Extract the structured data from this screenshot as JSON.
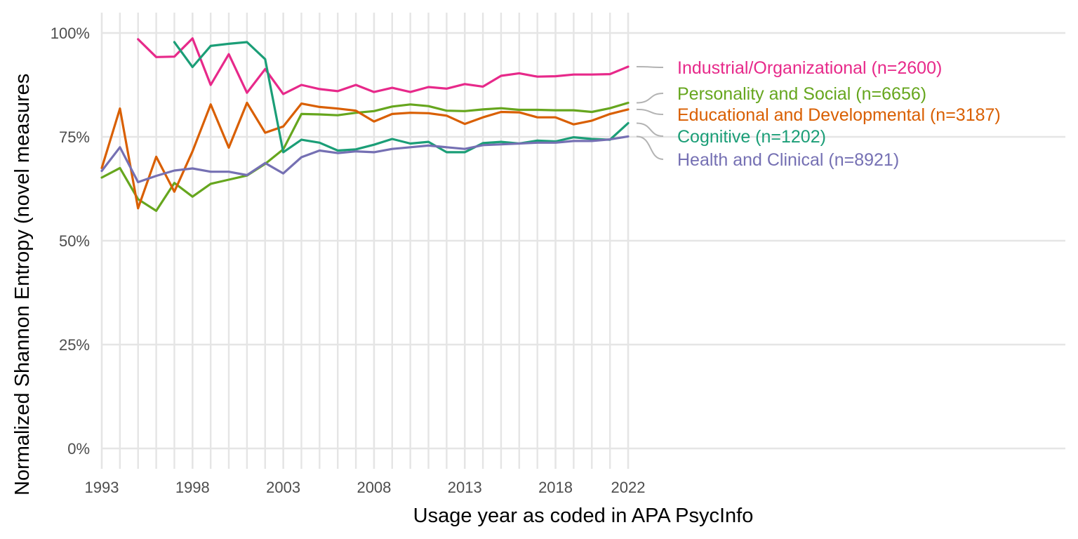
{
  "chart_data": {
    "type": "line",
    "xlabel": "Usage year as coded in APA PsycInfo",
    "ylabel": "Normalized Shannon Entropy (novel measures",
    "xlim": [
      1993,
      2022
    ],
    "ylim": [
      0,
      100
    ],
    "x_ticks": [
      1993,
      1998,
      2003,
      2008,
      2013,
      2018,
      2022
    ],
    "y_ticks": [
      0,
      25,
      50,
      75,
      100
    ],
    "y_tick_labels": [
      "0%",
      "25%",
      "50%",
      "75%",
      "100%"
    ],
    "grid": true,
    "legend_position": "right, direct labels",
    "series": [
      {
        "name": "Industrial/Organizational (n=2600)",
        "color": "#e7298a",
        "x": [
          1995,
          1996,
          1997,
          1998,
          1999,
          2000,
          2001,
          2002,
          2003,
          2004,
          2005,
          2006,
          2007,
          2008,
          2009,
          2010,
          2011,
          2012,
          2013,
          2014,
          2015,
          2016,
          2017,
          2018,
          2019,
          2020,
          2021,
          2022
        ],
        "values": [
          98.5,
          94.2,
          94.3,
          98.7,
          87.5,
          94.9,
          85.6,
          91.3,
          85.3,
          87.5,
          86.5,
          86.0,
          87.5,
          85.8,
          86.8,
          85.8,
          87.0,
          86.6,
          87.7,
          87.1,
          89.7,
          90.3,
          89.5,
          89.6,
          90.0,
          90.0,
          90.1,
          91.9
        ]
      },
      {
        "name": "Personality and Social (n=6656)",
        "color": "#66a61e",
        "x": [
          1993,
          1994,
          1995,
          1996,
          1997,
          1998,
          1999,
          2000,
          2001,
          2002,
          2003,
          2004,
          2005,
          2006,
          2007,
          2008,
          2009,
          2010,
          2011,
          2012,
          2013,
          2014,
          2015,
          2016,
          2017,
          2018,
          2019,
          2020,
          2021,
          2022
        ],
        "values": [
          65.2,
          67.5,
          60.0,
          57.2,
          63.9,
          60.6,
          63.7,
          64.7,
          65.7,
          68.5,
          72.0,
          80.5,
          80.4,
          80.2,
          80.8,
          81.2,
          82.3,
          82.8,
          82.4,
          81.3,
          81.2,
          81.6,
          81.9,
          81.5,
          81.5,
          81.4,
          81.4,
          81.0,
          81.9,
          83.2
        ]
      },
      {
        "name": "Educational and Developmental (n=3187)",
        "color": "#d95f02",
        "x": [
          1993,
          1994,
          1995,
          1996,
          1997,
          1998,
          1999,
          2000,
          2001,
          2002,
          2003,
          2004,
          2005,
          2006,
          2007,
          2008,
          2009,
          2010,
          2011,
          2012,
          2013,
          2014,
          2015,
          2016,
          2017,
          2018,
          2019,
          2020,
          2021,
          2022
        ],
        "values": [
          67.5,
          81.8,
          57.8,
          70.2,
          61.8,
          71.5,
          82.8,
          72.4,
          83.2,
          76.0,
          77.5,
          83.0,
          82.2,
          81.8,
          81.3,
          78.7,
          80.5,
          80.8,
          80.7,
          80.1,
          78.1,
          79.7,
          81.0,
          80.9,
          79.7,
          79.7,
          78.0,
          78.9,
          80.5,
          81.6
        ]
      },
      {
        "name": "Cognitive (n=1202)",
        "color": "#1b9e77",
        "x": [
          1997,
          1998,
          1999,
          2000,
          2001,
          2002,
          2003,
          2004,
          2005,
          2006,
          2007,
          2008,
          2009,
          2010,
          2011,
          2012,
          2013,
          2014,
          2015,
          2016,
          2017,
          2018,
          2019,
          2020,
          2021,
          2022
        ],
        "values": [
          97.8,
          91.8,
          96.9,
          97.4,
          97.8,
          93.7,
          71.3,
          74.3,
          73.6,
          71.7,
          72.0,
          73.1,
          74.5,
          73.4,
          73.8,
          71.3,
          71.3,
          73.5,
          73.8,
          73.4,
          74.1,
          73.9,
          74.9,
          74.5,
          74.3,
          78.3
        ]
      },
      {
        "name": "Health and Clinical (n=8921)",
        "color": "#7570b3",
        "x": [
          1993,
          1994,
          1995,
          1996,
          1997,
          1998,
          1999,
          2000,
          2001,
          2002,
          2003,
          2004,
          2005,
          2006,
          2007,
          2008,
          2009,
          2010,
          2011,
          2012,
          2013,
          2014,
          2015,
          2016,
          2017,
          2018,
          2019,
          2020,
          2021,
          2022
        ],
        "values": [
          66.8,
          72.5,
          64.1,
          65.6,
          66.9,
          67.4,
          66.6,
          66.6,
          65.8,
          68.7,
          66.2,
          70.1,
          71.7,
          71.1,
          71.5,
          71.3,
          72.1,
          72.5,
          72.9,
          72.5,
          72.1,
          73.0,
          73.2,
          73.4,
          73.6,
          73.6,
          74.0,
          74.0,
          74.4,
          75.1
        ]
      }
    ]
  }
}
